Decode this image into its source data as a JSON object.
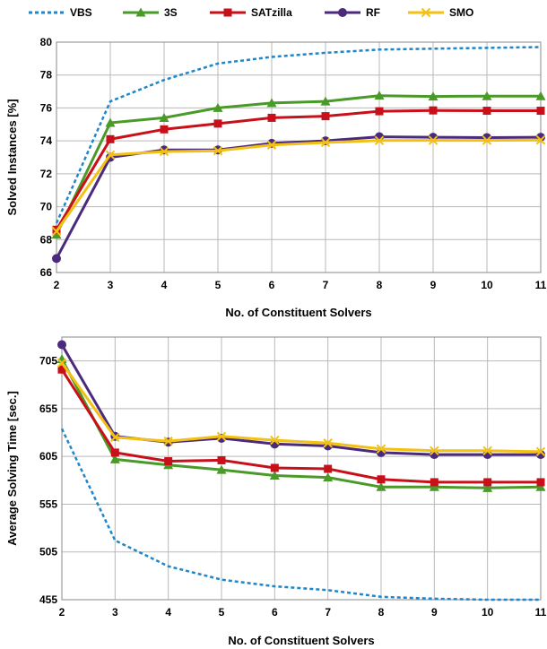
{
  "colors": {
    "VBS": "#1f86c9",
    "3S": "#4a9a2a",
    "SATzilla": "#c8101a",
    "RF": "#4b2a7b",
    "SMO": "#f2c114",
    "grid": "#b9b9b9",
    "frame": "#8a8a8a"
  },
  "legend": {
    "placement": "top",
    "entries": [
      {
        "name": "VBS",
        "marker": "none",
        "dash": "dotted"
      },
      {
        "name": "3S",
        "marker": "triangle"
      },
      {
        "name": "SATzilla",
        "marker": "square"
      },
      {
        "name": "RF",
        "marker": "circle"
      },
      {
        "name": "SMO",
        "marker": "x"
      }
    ]
  },
  "chart_data": [
    {
      "type": "line",
      "xlabel": "No. of Constituent Solvers",
      "ylabel": "Solved Instances [%]",
      "x": [
        2,
        3,
        4,
        5,
        6,
        7,
        8,
        9,
        10,
        11
      ],
      "xlim": [
        2,
        11
      ],
      "ylim": [
        66,
        80
      ],
      "yticks": [
        66,
        68,
        70,
        72,
        74,
        76,
        78,
        80
      ],
      "grid": true,
      "series": [
        {
          "name": "VBS",
          "values": [
            69.0,
            76.4,
            77.7,
            78.7,
            79.1,
            79.35,
            79.55,
            79.6,
            79.65,
            79.7
          ]
        },
        {
          "name": "3S",
          "values": [
            68.3,
            75.1,
            75.4,
            76.0,
            76.3,
            76.4,
            76.75,
            76.7,
            76.72,
            76.72
          ]
        },
        {
          "name": "SATzilla",
          "values": [
            68.6,
            74.1,
            74.7,
            75.05,
            75.4,
            75.5,
            75.8,
            75.85,
            75.83,
            75.83
          ]
        },
        {
          "name": "RF",
          "values": [
            66.85,
            73.0,
            73.45,
            73.45,
            73.85,
            74.0,
            74.25,
            74.22,
            74.2,
            74.22
          ]
        },
        {
          "name": "SMO",
          "values": [
            68.5,
            73.15,
            73.35,
            73.4,
            73.75,
            73.9,
            74.02,
            74.03,
            74.03,
            74.05
          ]
        }
      ]
    },
    {
      "type": "line",
      "xlabel": "No. of Constituent Solvers",
      "ylabel": "Average Solving Time [sec.]",
      "x": [
        2,
        3,
        4,
        5,
        6,
        7,
        8,
        9,
        10,
        11
      ],
      "xlim": [
        2,
        11
      ],
      "ylim": [
        455,
        730
      ],
      "yticks": [
        455,
        505,
        555,
        605,
        655,
        705
      ],
      "grid": true,
      "series": [
        {
          "name": "VBS",
          "values": [
            634,
            517,
            490,
            476,
            469,
            465,
            458,
            456,
            455,
            455
          ]
        },
        {
          "name": "3S",
          "values": [
            707,
            602,
            596,
            591,
            585,
            583,
            573,
            573,
            572,
            573
          ]
        },
        {
          "name": "SATzilla",
          "values": [
            696,
            609,
            600,
            601,
            593,
            592,
            581,
            578,
            578,
            578
          ]
        },
        {
          "name": "RF",
          "values": [
            722,
            626,
            620,
            624,
            618,
            616,
            609,
            607,
            607,
            607
          ]
        },
        {
          "name": "SMO",
          "values": [
            703,
            625,
            621,
            626,
            622,
            619,
            613,
            611,
            611,
            610
          ]
        }
      ]
    }
  ]
}
